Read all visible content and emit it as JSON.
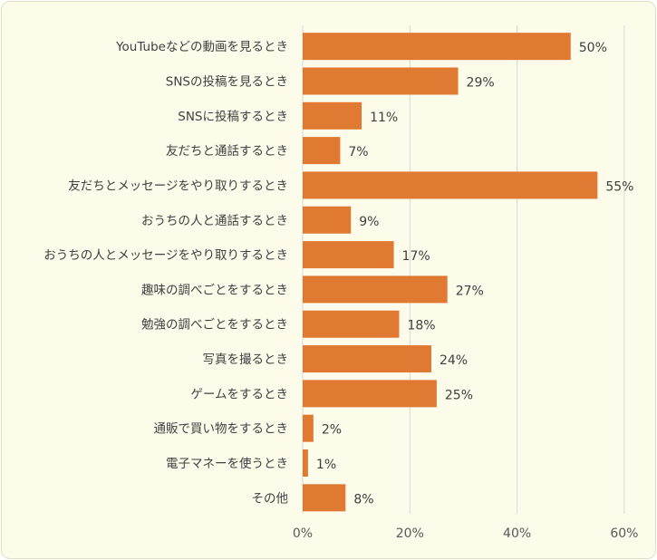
{
  "chart_data": {
    "type": "bar",
    "orientation": "horizontal",
    "categories": [
      "YouTubeなどの動画を見るとき",
      "SNSの投稿を見るとき",
      "SNSに投稿するとき",
      "友だちと通話するとき",
      "友だちとメッセージをやり取りするとき",
      "おうちの人と通話するとき",
      "おうちの人とメッセージをやり取りするとき",
      "趣味の調べごとをするとき",
      "勉強の調べごとをするとき",
      "写真を撮るとき",
      "ゲームをするとき",
      "通販で買い物をするとき",
      "電子マネーを使うとき",
      "その他"
    ],
    "values": [
      50,
      29,
      11,
      7,
      55,
      9,
      17,
      27,
      18,
      24,
      25,
      2,
      1,
      8
    ],
    "data_labels": [
      "50%",
      "29%",
      "11%",
      "7%",
      "55%",
      "9%",
      "17%",
      "27%",
      "18%",
      "24%",
      "25%",
      "2%",
      "1%",
      "8%"
    ],
    "x_ticks": [
      0,
      20,
      40,
      60
    ],
    "x_tick_labels": [
      "0%",
      "20%",
      "40%",
      "60%"
    ],
    "xlim": [
      0,
      60
    ],
    "grid": true,
    "bar_color": "#e07a32",
    "grid_color": "#d9d9d9",
    "title": "",
    "xlabel": "",
    "ylabel": ""
  }
}
